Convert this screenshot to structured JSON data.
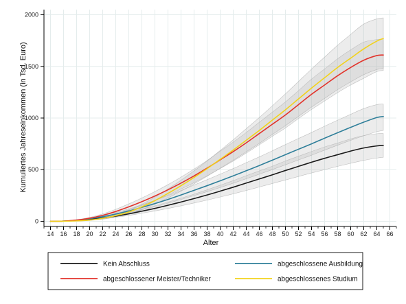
{
  "chart_data": {
    "type": "line",
    "title": "",
    "xlabel": "Alter",
    "ylabel": "Kumuliertes Jahreseinkommen (in Tsd. Euro)",
    "xlim": [
      13,
      67
    ],
    "ylim": [
      -50,
      2050
    ],
    "xticks": [
      14,
      16,
      18,
      20,
      22,
      24,
      26,
      28,
      30,
      32,
      34,
      36,
      38,
      40,
      42,
      44,
      46,
      48,
      50,
      52,
      54,
      56,
      58,
      60,
      62,
      64,
      66
    ],
    "yticks": [
      0,
      500,
      1000,
      1500,
      2000
    ],
    "grid": true,
    "legend_position": "bottom",
    "x": [
      14,
      16,
      18,
      20,
      22,
      24,
      26,
      28,
      30,
      32,
      34,
      36,
      38,
      40,
      42,
      44,
      46,
      48,
      50,
      52,
      54,
      56,
      58,
      60,
      62,
      64,
      65
    ],
    "series": [
      {
        "name": "Kein Abschluss",
        "color": "#1a1a1a",
        "values": [
          0,
          2,
          8,
          18,
          32,
          50,
          72,
          98,
          125,
          155,
          187,
          220,
          255,
          292,
          330,
          370,
          410,
          450,
          492,
          532,
          572,
          610,
          645,
          680,
          710,
          730,
          735
        ],
        "lower": [
          0,
          1,
          5,
          13,
          24,
          39,
          57,
          78,
          100,
          124,
          150,
          177,
          205,
          235,
          266,
          298,
          332,
          366,
          400,
          434,
          468,
          500,
          532,
          562,
          590,
          612,
          620
        ],
        "upper": [
          0,
          3,
          11,
          23,
          40,
          61,
          87,
          118,
          150,
          186,
          224,
          263,
          305,
          349,
          394,
          442,
          488,
          534,
          584,
          630,
          676,
          720,
          758,
          798,
          830,
          848,
          850
        ]
      },
      {
        "name": "abgeschlossene Ausbildung",
        "color": "#2f7f9a",
        "values": [
          0,
          2,
          10,
          25,
          45,
          70,
          100,
          135,
          172,
          212,
          255,
          300,
          345,
          392,
          440,
          490,
          540,
          592,
          645,
          698,
          750,
          805,
          858,
          910,
          960,
          1005,
          1015
        ],
        "lower": [
          0,
          1,
          7,
          18,
          34,
          55,
          80,
          110,
          141,
          175,
          211,
          249,
          287,
          327,
          369,
          412,
          456,
          501,
          547,
          594,
          640,
          689,
          737,
          784,
          828,
          868,
          880
        ],
        "upper": [
          0,
          3,
          13,
          32,
          56,
          85,
          120,
          160,
          203,
          249,
          299,
          351,
          403,
          457,
          511,
          568,
          624,
          683,
          743,
          802,
          860,
          921,
          979,
          1036,
          1092,
          1130,
          1135
        ]
      },
      {
        "name": "abgeschlossener Meister/Techniker",
        "color": "#e2332b",
        "values": [
          0,
          2,
          12,
          30,
          58,
          95,
          140,
          190,
          245,
          305,
          370,
          440,
          515,
          595,
          675,
          760,
          850,
          940,
          1030,
          1130,
          1230,
          1320,
          1410,
          1490,
          1560,
          1605,
          1610
        ],
        "lower": [
          0,
          1,
          8,
          22,
          44,
          74,
          111,
          154,
          202,
          255,
          312,
          374,
          441,
          511,
          583,
          660,
          741,
          823,
          904,
          995,
          1083,
          1165,
          1246,
          1320,
          1385,
          1450,
          1460
        ],
        "upper": [
          0,
          3,
          16,
          38,
          72,
          116,
          169,
          226,
          288,
          355,
          428,
          506,
          589,
          679,
          767,
          860,
          959,
          1057,
          1156,
          1265,
          1377,
          1475,
          1574,
          1660,
          1735,
          1760,
          1765
        ]
      },
      {
        "name": "abgeschlossenes Studium",
        "color": "#f2d21b",
        "values": [
          0,
          1,
          4,
          12,
          28,
          55,
          90,
          140,
          200,
          270,
          345,
          425,
          510,
          600,
          690,
          785,
          880,
          980,
          1080,
          1185,
          1290,
          1390,
          1490,
          1580,
          1670,
          1745,
          1770
        ],
        "lower": [
          0,
          0,
          2,
          8,
          20,
          42,
          71,
          114,
          166,
          227,
          292,
          362,
          436,
          514,
          591,
          673,
          755,
          841,
          926,
          1016,
          1106,
          1190,
          1275,
          1350,
          1420,
          1470,
          1480
        ],
        "upper": [
          0,
          2,
          6,
          16,
          36,
          68,
          109,
          166,
          234,
          313,
          398,
          488,
          584,
          686,
          789,
          897,
          1005,
          1119,
          1234,
          1354,
          1474,
          1590,
          1705,
          1810,
          1910,
          1960,
          1970
        ]
      }
    ]
  }
}
